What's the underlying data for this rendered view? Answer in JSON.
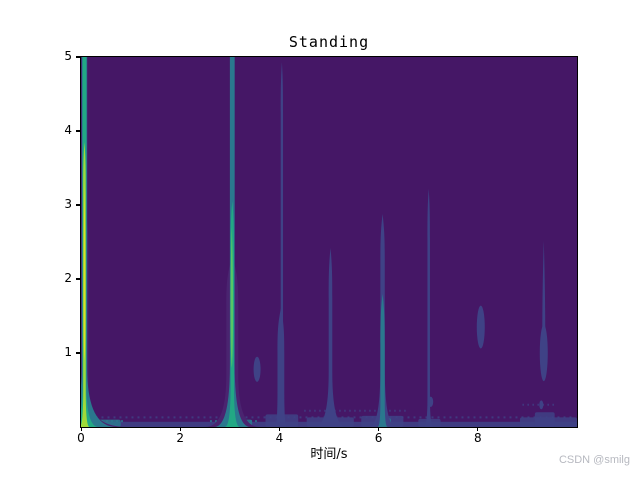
{
  "watermark": {
    "text": "CSDN @smilg",
    "color": "#b7b9c0"
  },
  "chart_data": {
    "type": "heatmap",
    "subtype": "spectrogram-contour",
    "title": "Standing",
    "xlabel": "时间/s",
    "ylabel": "",
    "xlim": [
      0,
      10
    ],
    "ylim": [
      0,
      5
    ],
    "x_ticks": [
      0,
      2,
      4,
      6,
      8
    ],
    "y_ticks": [
      1,
      2,
      3,
      4,
      5
    ],
    "grid": false,
    "legend": "none",
    "colormap": "viridis",
    "levels": {
      "bg": "#451766",
      "faint": "#4a2470",
      "low": "#3f4286",
      "mid": "#2a788e",
      "high": "#22a884",
      "higher": "#55c667",
      "top": "#a0da39",
      "peak": "#dde221"
    },
    "events": [
      {
        "time": 0.07,
        "reach_y": 5.0,
        "intensity": "peak",
        "layers": [
          {
            "shape": "spike",
            "color": "faint",
            "x": 0.07,
            "w": 4.0,
            "top": 3.0,
            "yf": 0.5,
            "Wb": 42
          },
          {
            "shape": "spike",
            "color": "mid",
            "x": 0.07,
            "w": 2.7,
            "top": 5,
            "flat": 1,
            "yf": 0.8,
            "Wb": 32
          },
          {
            "shape": "spike",
            "color": "high",
            "x": 0.07,
            "w": 1.8,
            "top": 5,
            "flat": 1,
            "yf": 0.6,
            "Wb": 14
          },
          {
            "shape": "spike",
            "color": "top",
            "x": 0.07,
            "w": 1.25,
            "top": 3.85,
            "yf": 0.5,
            "Wb": 5
          },
          {
            "shape": "needle",
            "color": "peak",
            "x": 0.07,
            "w": 1.0,
            "top": 3.3,
            "yb": 0.9,
            "wy": 1.7
          }
        ]
      },
      {
        "time": 3.05,
        "reach_y": 5.0,
        "intensity": "high",
        "layers": [
          {
            "shape": "spike",
            "color": "faint",
            "x": 3.05,
            "w": 6.0,
            "top": 2.3,
            "yf": 0.7,
            "Wb": 27
          },
          {
            "shape": "spike",
            "color": "mid",
            "x": 3.05,
            "w": 2.4,
            "top": 5,
            "flat": 1,
            "yf": 0.85,
            "Wb": 18
          },
          {
            "shape": "spike",
            "color": "high",
            "x": 3.05,
            "w": 1.7,
            "top": 3.05,
            "yf": 0.55,
            "Wb": 7.5
          },
          {
            "shape": "needle",
            "color": "higher",
            "x": 3.04,
            "w": 1.3,
            "top": 2.7,
            "yb": 0.8,
            "wy": 1.6
          }
        ]
      },
      {
        "time": 3.55,
        "reach_y": 0.95,
        "intensity": "low",
        "layers": [
          {
            "shape": "blob",
            "color": "low",
            "x": 3.55,
            "cy": 0.78,
            "rx": 3.5,
            "ry": 0.17
          }
        ]
      },
      {
        "time": 4.05,
        "reach_y": 4.93,
        "intensity": "low",
        "layers": [
          {
            "shape": "spike",
            "color": "low",
            "x": 4.05,
            "w": 1.15,
            "top": 4.93,
            "yf": 1.4,
            "Wb": 4
          },
          {
            "shape": "spike",
            "color": "low",
            "x": 4.03,
            "w": 3.4,
            "top": 1.6,
            "yf": 0.5,
            "Wb": 6
          }
        ]
      },
      {
        "time": 5.03,
        "reach_y": 2.42,
        "intensity": "low",
        "layers": [
          {
            "shape": "spike",
            "color": "low",
            "x": 5.03,
            "w": 1.8,
            "top": 2.42,
            "yf": 0.75,
            "Wb": 16
          }
        ]
      },
      {
        "time": 6.08,
        "reach_y": 2.88,
        "intensity": "medium",
        "layers": [
          {
            "shape": "spike",
            "color": "low",
            "x": 6.08,
            "w": 2.2,
            "top": 2.88,
            "yf": 0.8,
            "Wb": 14
          },
          {
            "shape": "spike",
            "color": "mid",
            "x": 6.08,
            "w": 2.2,
            "top": 1.8,
            "yf": 0.35,
            "Wb": 5
          }
        ]
      },
      {
        "time": 7.01,
        "reach_y": 3.22,
        "intensity": "low",
        "layers": [
          {
            "shape": "spike",
            "color": "low",
            "x": 7.01,
            "w": 1.25,
            "top": 3.22,
            "yf": 0.4,
            "Wb": 5
          },
          {
            "shape": "blob",
            "color": "low",
            "x": 7.05,
            "cy": 0.34,
            "rx": 2.5,
            "ry": 0.07
          }
        ]
      },
      {
        "time": 8.06,
        "reach_y": 1.62,
        "intensity": "low",
        "layers": [
          {
            "shape": "blob",
            "color": "low",
            "x": 8.06,
            "cy": 1.35,
            "rx": 4,
            "ry": 0.29
          }
        ]
      },
      {
        "time": 9.33,
        "reach_y": 2.52,
        "intensity": "low",
        "layers": [
          {
            "shape": "needle",
            "color": "low",
            "x": 9.33,
            "w": 1.5,
            "top": 2.52,
            "yb": 0.62,
            "wy": 1.1
          },
          {
            "shape": "blob",
            "color": "low",
            "x": 9.33,
            "cy": 1.0,
            "rx": 4,
            "ry": 0.38
          },
          {
            "shape": "blob",
            "color": "low",
            "x": 9.28,
            "cy": 0.3,
            "rx": 2,
            "ry": 0.06
          }
        ]
      }
    ],
    "band": {
      "color": "low",
      "height": 0.07,
      "patches": [
        {
          "x0": 3.72,
          "x1": 4.38,
          "h": 0.17,
          "color": "low"
        },
        {
          "x0": 4.55,
          "x1": 5.5,
          "h": 0.13,
          "color": "low"
        },
        {
          "x0": 5.65,
          "x1": 6.5,
          "h": 0.15,
          "color": "low"
        },
        {
          "x0": 6.8,
          "x1": 7.25,
          "h": 0.11,
          "color": "low"
        },
        {
          "x0": 8.85,
          "x1": 10.0,
          "h": 0.13,
          "color": "low"
        },
        {
          "x0": 9.15,
          "x1": 9.55,
          "h": 0.2,
          "color": "low"
        },
        {
          "x0": 0.0,
          "x1": 0.8,
          "h": 0.1,
          "color": "mid"
        },
        {
          "x0": 2.75,
          "x1": 3.45,
          "h": 0.1,
          "color": "mid"
        },
        {
          "x0": 5.95,
          "x1": 6.25,
          "h": 0.12,
          "color": "mid"
        }
      ],
      "speckles": [
        {
          "y": 0.13,
          "x0": 0.05,
          "x1": 9.95,
          "dash": "2 4",
          "color": "low"
        },
        {
          "y": 0.22,
          "x0": 4.5,
          "x1": 6.6,
          "dash": "1.5 3.5",
          "color": "low"
        },
        {
          "y": 0.3,
          "x0": 8.9,
          "x1": 9.6,
          "dash": "1.5 3.5",
          "color": "low"
        },
        {
          "y": 0.08,
          "x0": 0.0,
          "x1": 0.9,
          "dash": "2 3",
          "color": "mid"
        },
        {
          "y": 0.08,
          "x0": 2.6,
          "x1": 3.6,
          "dash": "2 3",
          "color": "mid"
        }
      ]
    }
  }
}
